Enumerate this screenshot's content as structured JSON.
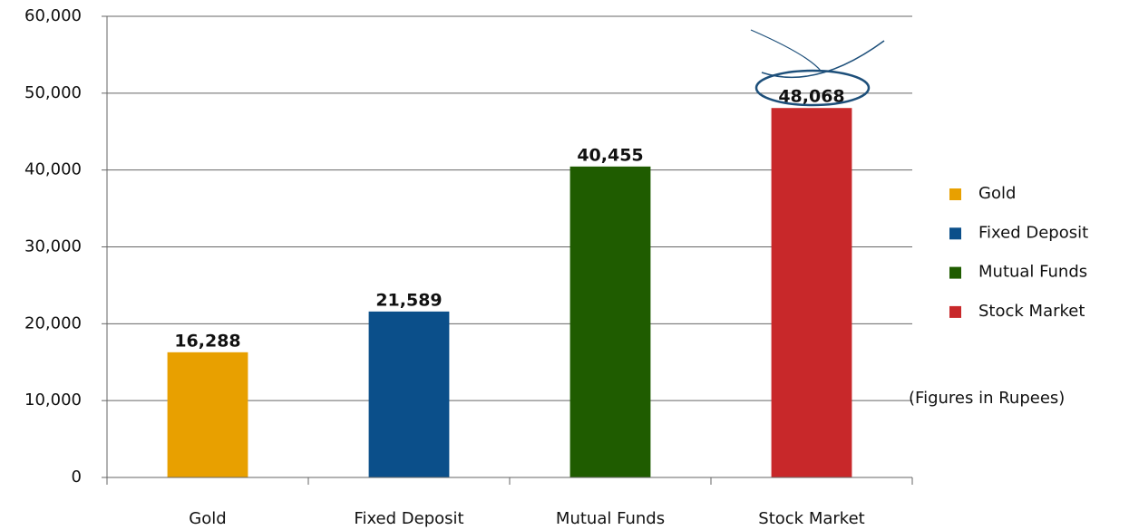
{
  "chart_data": {
    "type": "bar",
    "categories": [
      "Gold",
      "Fixed Deposit",
      "Mutual Funds",
      "Stock Market"
    ],
    "values": [
      16288,
      21589,
      40455,
      48068
    ],
    "value_labels": [
      "16,288",
      "21,589",
      "40,455",
      "48,068"
    ],
    "colors": [
      "#e8a000",
      "#0b4f8a",
      "#1f5c00",
      "#c8282a"
    ],
    "ylim": [
      0,
      60000
    ],
    "yticks": [
      0,
      {
        "value": 10000,
        "label": "10,000"
      },
      {
        "value": 20000,
        "label": "20,000"
      },
      {
        "value": 30000,
        "label": "30,000"
      },
      {
        "value": 40000,
        "label": "40,000"
      },
      {
        "value": 50000,
        "label": "50,000"
      },
      {
        "value": 60000,
        "label": "60,000"
      }
    ],
    "grid": true,
    "legend": "right",
    "annotation": "(Figures in Rupees)"
  }
}
